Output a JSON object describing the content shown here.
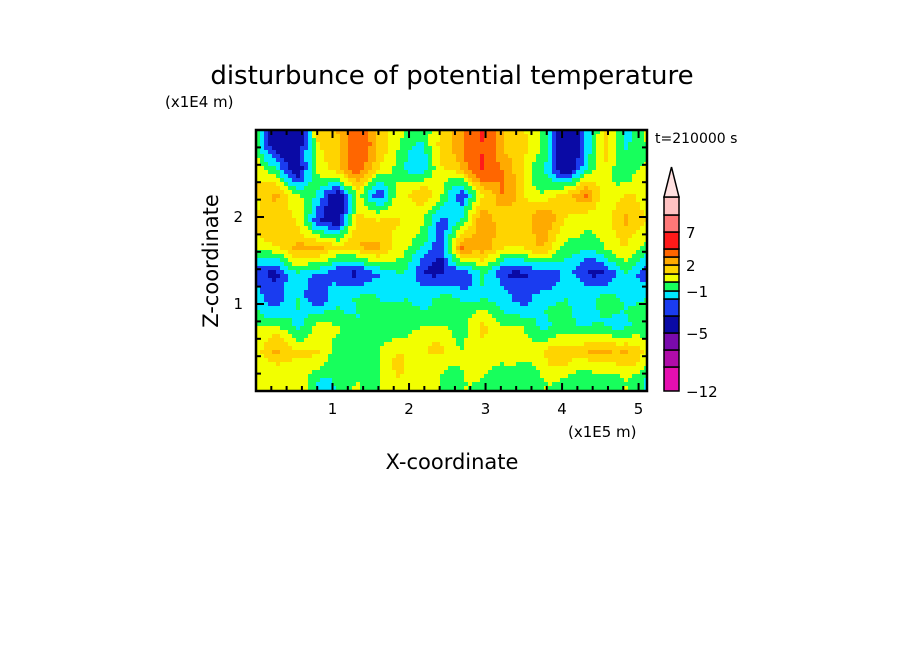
{
  "chart_data": {
    "type": "heatmap",
    "title": "disturbunce of potential temperature",
    "xlabel": "X-coordinate",
    "ylabel": "Z-coordinate",
    "x_unit": "(x1E5 m)",
    "y_unit": "(x1E4 m)",
    "time_label": "t=210000 s",
    "xlim": [
      0,
      5.11
    ],
    "ylim": [
      0,
      3.0
    ],
    "x_ticks": [
      1,
      2,
      3,
      4,
      5
    ],
    "y_ticks": [
      1,
      2
    ],
    "colorbar": {
      "levels": [
        -12,
        -9,
        -7,
        -5,
        -3,
        -2,
        -1,
        0,
        1,
        2,
        3,
        5,
        7,
        9,
        12
      ],
      "colors": [
        "#e60fb0",
        "#b00ca8",
        "#7a0aad",
        "#0a0aa5",
        "#1a3cf0",
        "#00e8ff",
        "#17ff5c",
        "#f2ff00",
        "#ffd400",
        "#ffaa00",
        "#ff6600",
        "#ff1a1a",
        "#ff7878",
        "#ffc2c2"
      ],
      "extend_color": "#ffe0e0",
      "tick_labels": [
        "7",
        "2",
        "-1",
        "-5",
        "-12"
      ],
      "tick_values": [
        7,
        2,
        -1,
        -5,
        -12
      ]
    },
    "grid_z": [
      2.85,
      2.55,
      2.25,
      1.95,
      1.65,
      1.35,
      1.05,
      0.75,
      0.45,
      0.15
    ],
    "grid_x_range": [
      0,
      5.11
    ],
    "values": [
      [
        0,
        -5,
        -4,
        1,
        2,
        4,
        2,
        0,
        -1,
        1,
        3,
        5,
        2,
        1,
        0,
        -5,
        -2,
        1,
        -1,
        0
      ],
      [
        1,
        -1,
        -4,
        0,
        2,
        4,
        1,
        -1,
        -2,
        1,
        2,
        5,
        3,
        1,
        -1,
        -5,
        -1,
        1,
        -1,
        0
      ],
      [
        1,
        2,
        0,
        -1,
        -4,
        0,
        -3,
        1,
        2,
        0,
        -3,
        1,
        3,
        1,
        0,
        2,
        3,
        0,
        1,
        1
      ],
      [
        1,
        2,
        1,
        -3,
        -4,
        2,
        1,
        1,
        0,
        -2,
        -1,
        3,
        1,
        2,
        3,
        1,
        0,
        1,
        2,
        1
      ],
      [
        0,
        1,
        2,
        3,
        1,
        2,
        2,
        1,
        -1,
        -3,
        3,
        3,
        1,
        1,
        2,
        0,
        -1,
        0,
        1,
        0
      ],
      [
        -3,
        -3,
        -1,
        -2,
        -3,
        -3,
        -2,
        -1,
        -3,
        -3,
        -3,
        -1,
        -3,
        -3,
        -3,
        -2,
        -3,
        -3,
        -1,
        -3
      ],
      [
        -1,
        -3,
        -1,
        -3,
        -1,
        -1,
        -1,
        -1,
        -1,
        -1,
        -1,
        -1,
        -1,
        -3,
        -1,
        -1,
        -1,
        -1,
        -1,
        -1
      ],
      [
        0,
        0,
        -1,
        0,
        0,
        -1,
        0,
        -1,
        0,
        0,
        0,
        1,
        0,
        0,
        -1,
        -1,
        -1,
        -1,
        -1,
        -1
      ],
      [
        1,
        2,
        1,
        1,
        0,
        -1,
        0,
        1,
        1,
        1,
        0,
        1,
        1,
        0,
        1,
        2,
        2,
        2,
        2,
        1
      ],
      [
        0,
        0,
        1,
        -1,
        -1,
        0,
        0,
        1,
        0,
        0,
        0,
        0,
        -1,
        0,
        0,
        0,
        -1,
        0,
        0,
        -1
      ]
    ]
  }
}
